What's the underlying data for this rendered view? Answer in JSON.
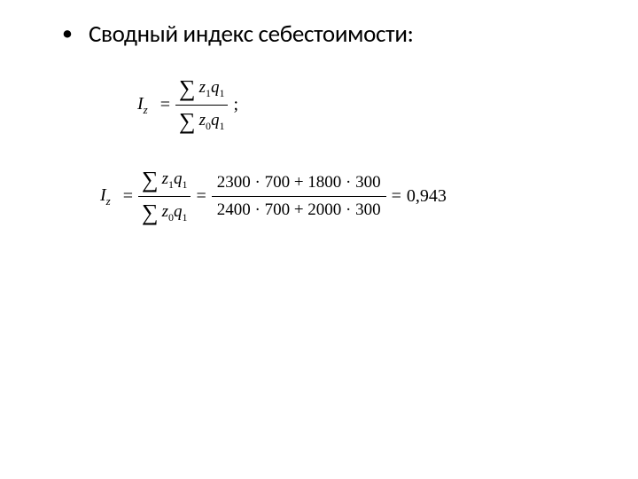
{
  "heading": "Сводный индекс себестоимости:",
  "bullet_char": "•",
  "formula1": {
    "lhs_var": "I",
    "lhs_sub": "z",
    "eq": "=",
    "numer_sigma": "∑",
    "numer_z": "z",
    "numer_z_sub": "1",
    "numer_q": "q",
    "numer_q_sub": "1",
    "denom_sigma": "∑",
    "denom_z": "z",
    "denom_z_sub": "0",
    "denom_q": "q",
    "denom_q_sub": "1",
    "trailing": ";"
  },
  "formula2": {
    "lhs_var": "I",
    "lhs_sub": "z",
    "eq1": "=",
    "frac1_numer_sigma": "∑",
    "frac1_numer_z": "z",
    "frac1_numer_z_sub": "1",
    "frac1_numer_q": "q",
    "frac1_numer_q_sub": "1",
    "frac1_denom_sigma": "∑",
    "frac1_denom_z": "z",
    "frac1_denom_z_sub": "0",
    "frac1_denom_q": "q",
    "frac1_denom_q_sub": "1",
    "eq2": "=",
    "frac2_numer": "2300 · 700 + 1800 · 300",
    "frac2_denom": "2400 · 700 + 2000 · 300",
    "eq3": "=",
    "result": "0,943"
  },
  "colors": {
    "background": "#ffffff",
    "text": "#000000"
  }
}
